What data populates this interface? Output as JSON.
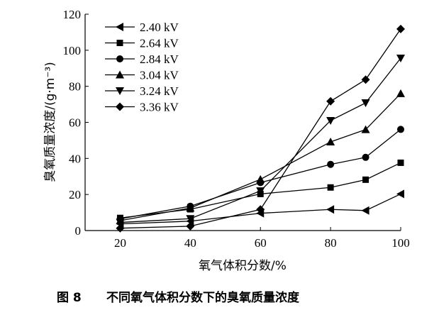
{
  "chart_data": {
    "type": "line",
    "caption_prefix": "图 8",
    "caption": "不同氧气体积分数下的臭氧质量浓度",
    "xlabel": "氧气体积分数/%",
    "ylabel": "臭氧质量浓度/(g·m⁻³)",
    "xlim": [
      10,
      100
    ],
    "ylim": [
      0,
      120
    ],
    "xticks": [
      20,
      40,
      60,
      80,
      100
    ],
    "yticks": [
      0,
      20,
      40,
      60,
      80,
      100,
      120
    ],
    "grid": false,
    "legend_position": "top-left",
    "x": [
      20,
      40,
      60,
      80,
      90,
      100
    ],
    "series": [
      {
        "name": "2.40 kV",
        "marker": "triangle-left",
        "values": [
          3.7,
          5.2,
          9.6,
          11.7,
          11.1,
          20.3
        ]
      },
      {
        "name": "2.64 kV",
        "marker": "square",
        "values": [
          7.0,
          11.8,
          20.3,
          23.9,
          28.2,
          37.6
        ]
      },
      {
        "name": "2.84 kV",
        "marker": "circle",
        "values": [
          6.5,
          13.5,
          26.6,
          36.7,
          40.6,
          56.1
        ]
      },
      {
        "name": "3.04 kV",
        "marker": "triangle-up",
        "values": [
          5.5,
          12.5,
          28.4,
          49.2,
          56.0,
          76.0
        ]
      },
      {
        "name": "3.24 kV",
        "marker": "triangle-down",
        "values": [
          4.5,
          6.6,
          22.0,
          61.0,
          70.8,
          95.6
        ]
      },
      {
        "name": "3.36 kV",
        "marker": "diamond",
        "values": [
          1.3,
          2.4,
          11.7,
          71.7,
          83.7,
          111.8
        ]
      }
    ]
  }
}
